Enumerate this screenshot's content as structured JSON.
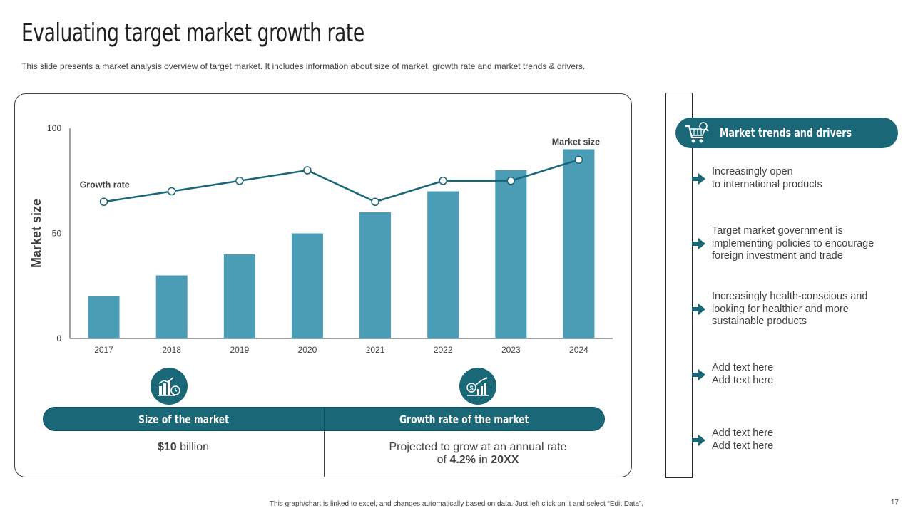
{
  "slide": {
    "title": "Evaluating target market growth rate",
    "subtitle": "This slide presents a market analysis overview of target market. It includes information about size of market, growth rate and market trends & drivers.",
    "footer": "This graph/chart is linked to excel, and changes automatically based on data. Just left click on it and select “Edit Data”.",
    "page_number": "17"
  },
  "colors": {
    "bar": "#4a9db5",
    "line": "#1a6877",
    "accent": "#1a6877",
    "text": "#404040"
  },
  "chart_data": {
    "type": "bar",
    "categories": [
      "2017",
      "2018",
      "2019",
      "2020",
      "2021",
      "2022",
      "2023",
      "2024"
    ],
    "series": [
      {
        "name": "Market size",
        "type": "bar",
        "values": [
          20,
          30,
          40,
          50,
          60,
          70,
          80,
          90
        ]
      },
      {
        "name": "Growth rate",
        "type": "line",
        "values": [
          65,
          70,
          75,
          80,
          65,
          75,
          75,
          85
        ]
      }
    ],
    "ylabel": "Market size",
    "xlabel": "",
    "ylim": [
      0,
      100
    ],
    "yticks": [
      0,
      50,
      100
    ],
    "annotations": [
      "Growth rate",
      "Market size"
    ]
  },
  "summary": {
    "size": {
      "header": "Size of the market",
      "value_bold": "$10",
      "value_rest": " billion"
    },
    "growth": {
      "header": "Growth rate of the market",
      "line1": "Projected to grow at an annual rate",
      "line2_pre": "of ",
      "rate": "4.2%",
      "line2_mid": " in ",
      "year": "20XX"
    }
  },
  "trends": {
    "header": "Market trends and drivers",
    "items": [
      {
        "lines": [
          "Increasingly open",
          "to international products"
        ]
      },
      {
        "lines": [
          "Target market government is",
          "implementing policies to encourage",
          "foreign investment and trade"
        ]
      },
      {
        "lines": [
          "Increasingly health-conscious and",
          "looking for healthier and more",
          "sustainable products"
        ]
      },
      {
        "lines": [
          "Add text here",
          "Add text here"
        ]
      },
      {
        "lines": [
          "Add text here",
          "Add text here"
        ]
      }
    ]
  },
  "icons": {
    "size": "bar-chart-clock-icon",
    "growth": "dollar-growth-icon",
    "trends": "shopping-cart-search-icon",
    "bullet": "arrow-right-icon"
  }
}
